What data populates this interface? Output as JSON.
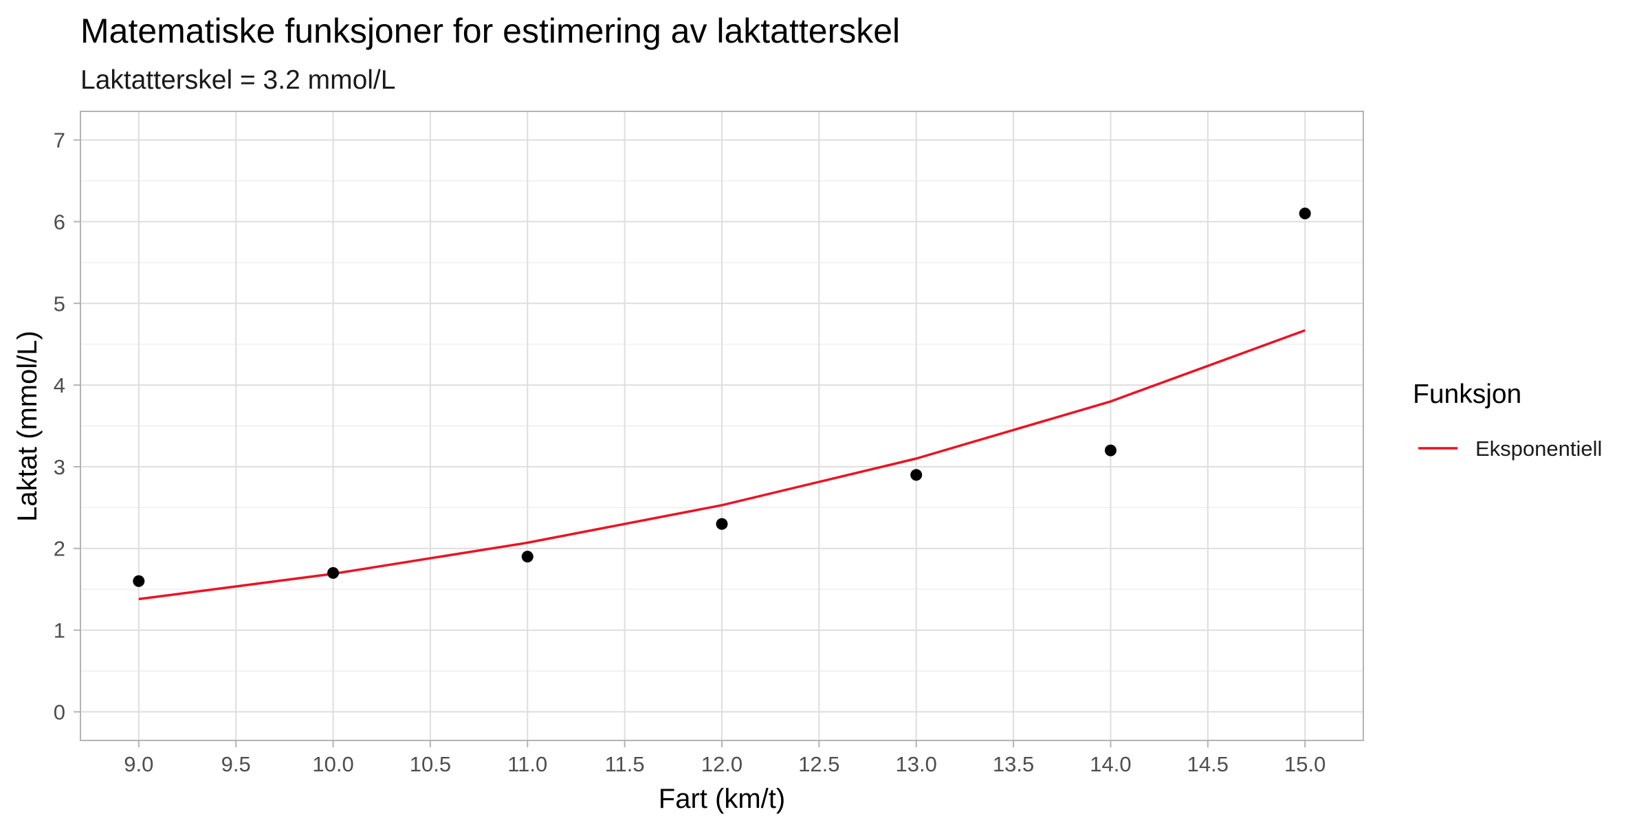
{
  "chart_data": {
    "type": "line",
    "title": "Matematiske funksjoner for estimering av laktatterskel",
    "subtitle": "Laktatterskel = 3.2 mmol/L",
    "xlabel": "Fart (km/t)",
    "ylabel": "Laktat (mmol/L)",
    "xlim": [
      8.7,
      15.3
    ],
    "ylim": [
      -0.35,
      7.35
    ],
    "x_ticks": [
      "9.0",
      "9.5",
      "10.0",
      "10.5",
      "11.0",
      "11.5",
      "12.0",
      "12.5",
      "13.0",
      "13.5",
      "14.0",
      "14.5",
      "15.0"
    ],
    "y_ticks": [
      "0",
      "1",
      "2",
      "3",
      "4",
      "5",
      "6",
      "7"
    ],
    "grid": true,
    "legend": {
      "title": "Funksjon",
      "position": "right"
    },
    "points": {
      "x": [
        9,
        10,
        11,
        12,
        13,
        14,
        15
      ],
      "y": [
        1.6,
        1.7,
        1.9,
        2.3,
        2.9,
        3.2,
        6.1
      ],
      "color": "#000000"
    },
    "series": [
      {
        "name": "Eksponentiell",
        "color": "#ee1122",
        "x": [
          9,
          10,
          11,
          12,
          13,
          14,
          15
        ],
        "y": [
          1.38,
          1.69,
          2.07,
          2.53,
          3.1,
          3.8,
          4.67
        ]
      }
    ]
  }
}
